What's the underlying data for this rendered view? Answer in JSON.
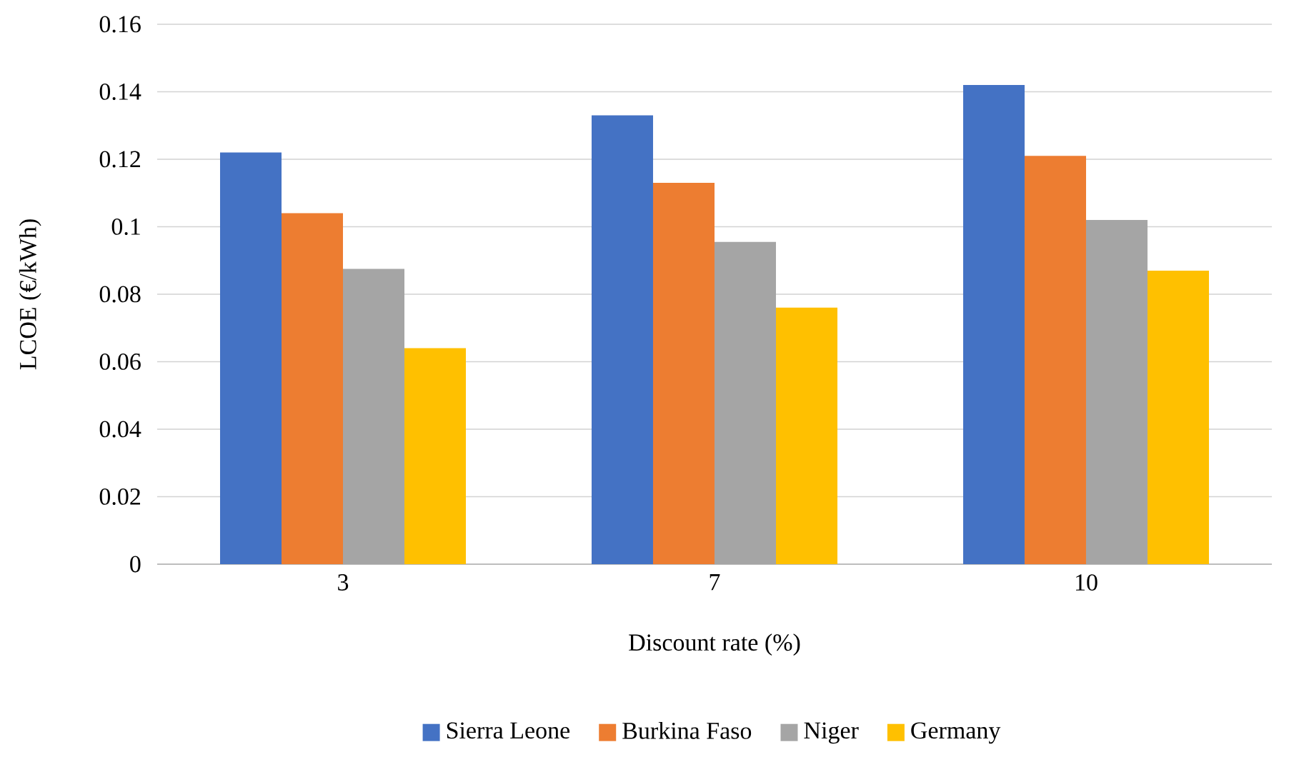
{
  "chart_data": {
    "type": "bar",
    "xlabel": "Discount rate (%)",
    "ylabel": "LCOE (€/kWh)",
    "categories": [
      "3",
      "7",
      "10"
    ],
    "series": [
      {
        "name": "Sierra Leone",
        "color": "#4472c4",
        "values": [
          0.122,
          0.133,
          0.142
        ]
      },
      {
        "name": "Burkina Faso",
        "color": "#ed7d31",
        "values": [
          0.104,
          0.113,
          0.121
        ]
      },
      {
        "name": "Niger",
        "color": "#a5a5a5",
        "values": [
          0.0875,
          0.0955,
          0.102
        ]
      },
      {
        "name": "Germany",
        "color": "#ffc000",
        "values": [
          0.064,
          0.076,
          0.087
        ]
      }
    ],
    "ylim": [
      0,
      0.16
    ],
    "yticks": [
      0,
      0.02,
      0.04,
      0.06,
      0.08,
      0.1,
      0.12,
      0.14,
      0.16
    ],
    "grid": "y",
    "legend": "bottom"
  }
}
